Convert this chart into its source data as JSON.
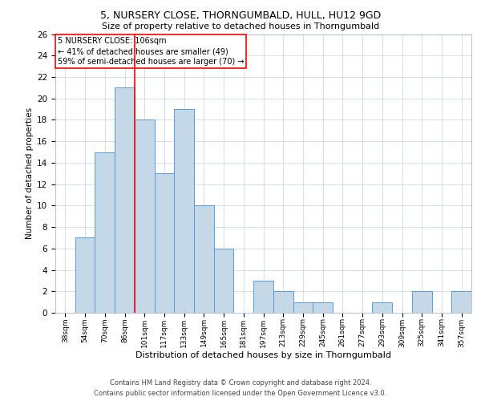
{
  "title1": "5, NURSERY CLOSE, THORNGUMBALD, HULL, HU12 9GD",
  "title2": "Size of property relative to detached houses in Thorngumbald",
  "xlabel": "Distribution of detached houses by size in Thorngumbald",
  "ylabel": "Number of detached properties",
  "categories": [
    "38sqm",
    "54sqm",
    "70sqm",
    "86sqm",
    "101sqm",
    "117sqm",
    "133sqm",
    "149sqm",
    "165sqm",
    "181sqm",
    "197sqm",
    "213sqm",
    "229sqm",
    "245sqm",
    "261sqm",
    "277sqm",
    "293sqm",
    "309sqm",
    "325sqm",
    "341sqm",
    "357sqm"
  ],
  "values": [
    0,
    7,
    15,
    21,
    18,
    13,
    19,
    10,
    6,
    0,
    3,
    2,
    1,
    1,
    0,
    0,
    1,
    0,
    2,
    0,
    2
  ],
  "bar_color": "#c5d8e8",
  "bar_edge_color": "#5b9bd5",
  "highlight_line_color": "red",
  "annotation_title": "5 NURSERY CLOSE: 106sqm",
  "annotation_line1": "← 41% of detached houses are smaller (49)",
  "annotation_line2": "59% of semi-detached houses are larger (70) →",
  "ylim": [
    0,
    26
  ],
  "yticks": [
    0,
    2,
    4,
    6,
    8,
    10,
    12,
    14,
    16,
    18,
    20,
    22,
    24,
    26
  ],
  "footer1": "Contains HM Land Registry data © Crown copyright and database right 2024.",
  "footer2": "Contains public sector information licensed under the Open Government Licence v3.0.",
  "bg_color": "#ffffff",
  "grid_color": "#d0d8e8"
}
